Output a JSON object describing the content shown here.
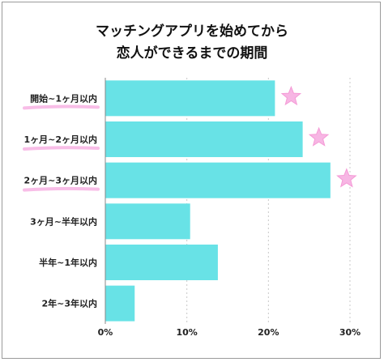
{
  "chart_data": {
    "type": "bar",
    "orientation": "horizontal",
    "title_lines": [
      "マッチングアプリを始めてから",
      "恋人ができるまでの期間"
    ],
    "categories": [
      "開始~1ヶ月以内",
      "1ヶ月~2ヶ月以内",
      "2ヶ月~3ヶ月以内",
      "3ヶ月~半年以内",
      "半年~1年以内",
      "2年~3年以内"
    ],
    "values": [
      20.8,
      24.2,
      27.6,
      10.4,
      13.8,
      3.6
    ],
    "xlim": [
      0,
      30
    ],
    "xticks": [
      "0%",
      "10%",
      "20%",
      "30%"
    ],
    "grid": "vertical",
    "highlighted_categories": [
      0,
      1,
      2
    ],
    "colors": {
      "bar": "#68e2e6",
      "star": "#f7b6e4",
      "underline": "#f7b6e4",
      "grid": "#c8c8c8"
    }
  }
}
